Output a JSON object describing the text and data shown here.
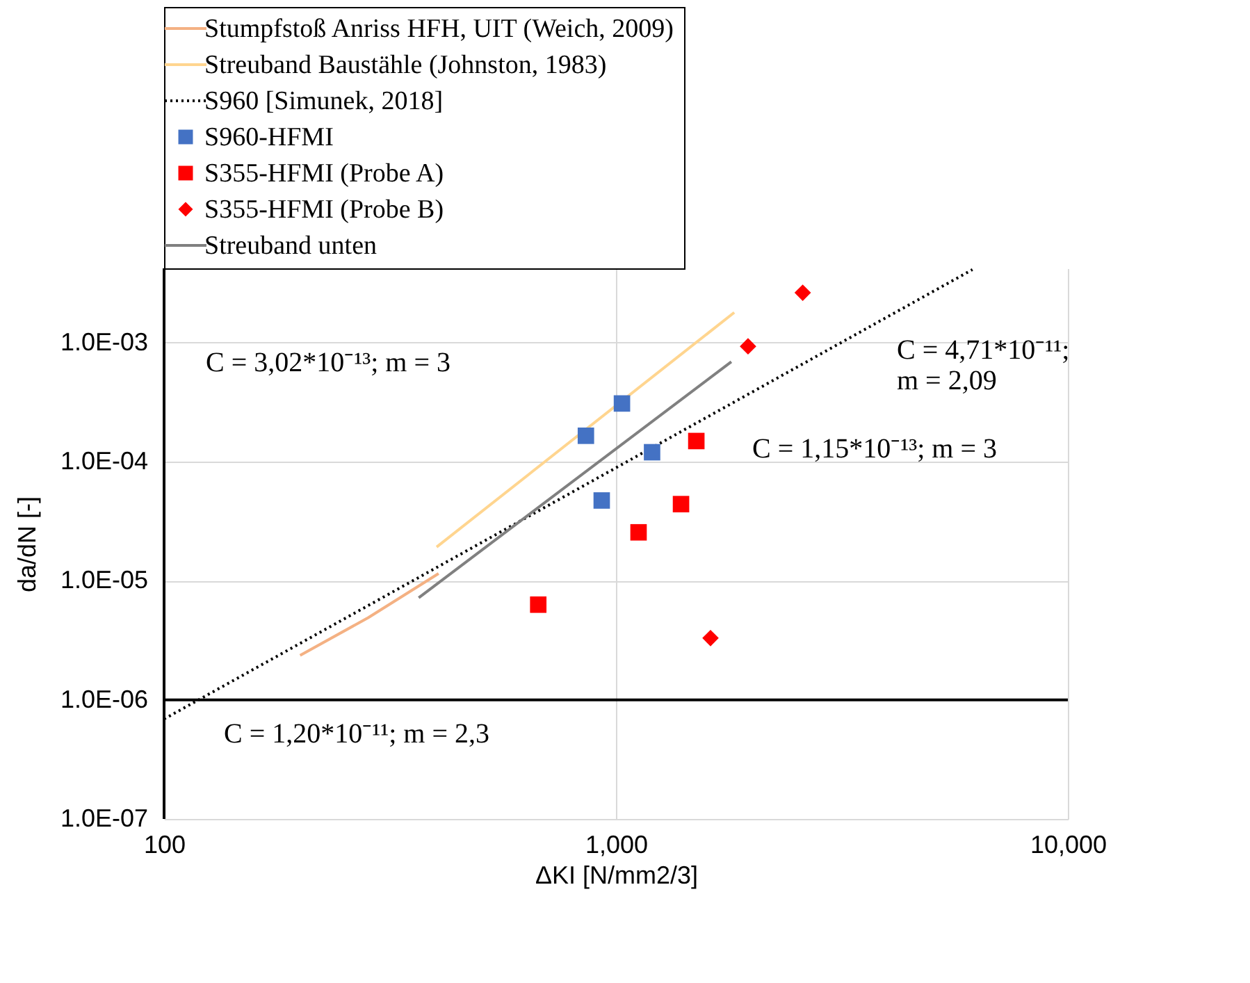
{
  "chart_data": {
    "type": "scatter",
    "xlabel": "ΔKI [N/mm2/3]",
    "ylabel": "da/dN [-]",
    "log": "xy",
    "grid": true,
    "legend": "top",
    "xlim": [
      100,
      10000
    ],
    "xticks": [
      100,
      {
        "value": 1000,
        "label": "1,000"
      },
      {
        "value": 10000,
        "label": "10,000"
      }
    ],
    "ylim": [
      1e-07,
      0.0042
    ],
    "yticks": [
      {
        "value": 1e-07,
        "label": "1.0E-07"
      },
      {
        "value": 1e-06,
        "label": "1.0E-06"
      },
      {
        "value": 1e-05,
        "label": "1.0E-05"
      },
      {
        "value": 0.0001,
        "label": "1.0E-04"
      },
      {
        "value": 0.001,
        "label": "1.0E-03"
      }
    ],
    "series": [
      {
        "name": "Stumpfstoß Anriss HFH, UIT (Weich, 2009)",
        "type": "line",
        "color": "#f4b183",
        "line_style": "solid",
        "marker": "none",
        "x": [
          200,
          283,
          405
        ],
        "values": [
          2.36e-06,
          4.9e-06,
          1.15e-05
        ]
      },
      {
        "name": "Streuband Baustähle (Johnston, 1983)",
        "type": "line",
        "color": "#ffd58f",
        "line_style": "solid",
        "marker": "none",
        "x": [
          401,
          1827
        ],
        "values": [
          1.92e-05,
          0.00179
        ]
      },
      {
        "name": "S960 [Simunek, 2018]",
        "type": "line",
        "color": "#000000",
        "line_style": "dotted",
        "marker": "none",
        "x": [
          100,
          6150
        ],
        "values": [
          6.9e-07,
          0.0041
        ]
      },
      {
        "name": "S960-HFMI",
        "color": "#4472c4",
        "marker": "square",
        "x": [
          858,
          1031,
          1202,
          930
        ],
        "values": [
          0.000165,
          0.000308,
          0.00012,
          4.72e-05
        ]
      },
      {
        "name": "S355-HFMI (Probe A)",
        "color": "#ff0000",
        "marker": "square",
        "x": [
          673,
          1122,
          1393,
          1506
        ],
        "values": [
          6.3e-06,
          2.55e-05,
          4.4e-05,
          0.000149
        ]
      },
      {
        "name": "S355-HFMI (Probe B)",
        "color": "#ff0000",
        "marker": "diamond",
        "x": [
          1619,
          1960,
          2590
        ],
        "values": [
          3.3e-06,
          0.00093,
          0.00262
        ]
      },
      {
        "name": "Streuband unten",
        "type": "line",
        "color": "#808080",
        "line_style": "solid",
        "marker": "none",
        "x": [
          366,
          1800
        ],
        "values": [
          7.2e-06,
          0.00069
        ]
      }
    ],
    "ref_lines": [
      {
        "axis": "y",
        "value": 1e-06,
        "color": "#000000"
      }
    ],
    "annotations": [
      "C = 3,02*10⁻¹³; m = 3",
      "C = 4,71*10⁻¹¹;\nm = 2,09",
      "C = 1,15*10⁻¹³; m = 3",
      "C = 1,20*10⁻¹¹; m = 2,3"
    ]
  }
}
